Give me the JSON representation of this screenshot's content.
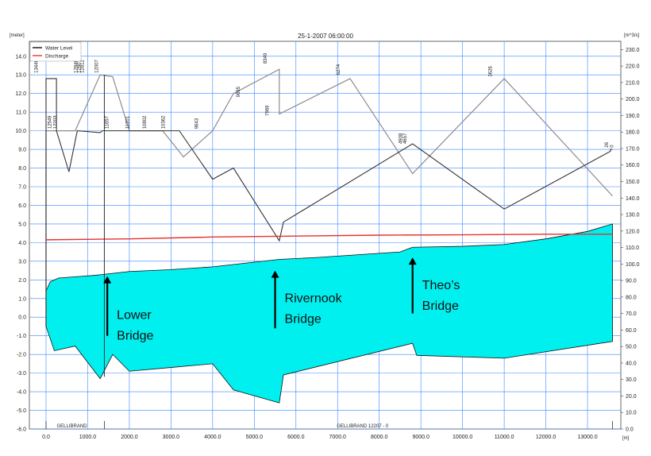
{
  "chart_data": {
    "type": "line",
    "title": "25-1-2007 06:00:00",
    "ylabel_left": "[meter]",
    "ylabel_right": "[m^3/s]",
    "xlabel": "[m]",
    "xlim": [
      -400,
      13800
    ],
    "ylim_left": [
      -6.0,
      14.8
    ],
    "ylim_right": [
      0,
      235
    ],
    "x_ticks": [
      "0.0",
      "1000.0",
      "2000.0",
      "3000.0",
      "4000.0",
      "5000.0",
      "6000.0",
      "7000.0",
      "8000.0",
      "9000.0",
      "10000.0",
      "11000.0",
      "12000.0",
      "13000.0"
    ],
    "y_ticks_left": [
      "14.0",
      "13.0",
      "12.0",
      "11.0",
      "10.0",
      "9.0",
      "8.0",
      "7.0",
      "6.0",
      "5.0",
      "4.0",
      "3.0",
      "2.0",
      "1.0",
      "0.0",
      "-1.0",
      "-2.0",
      "-3.0",
      "-4.0",
      "-5.0",
      "-6.0"
    ],
    "y_ticks_right": [
      "230.0",
      "220.0",
      "210.0",
      "200.0",
      "190.0",
      "180.0",
      "170.0",
      "160.0",
      "150.0",
      "140.0",
      "130.0",
      "120.0",
      "110.0",
      "100.0",
      "90.0",
      "80.0",
      "70.0",
      "60.0",
      "50.0",
      "40.0",
      "30.0",
      "20.0",
      "10.0",
      "0.0"
    ],
    "grid": true,
    "legend_position": "top-left",
    "series": [
      {
        "name": "Water Level",
        "color": "#111111"
      },
      {
        "name": "Discharge",
        "color": "#e8322a"
      }
    ],
    "water_level": {
      "x": [
        0,
        1400,
        13600
      ],
      "y": [
        1.4,
        2.3,
        5.0
      ],
      "fill": "#00f0f0"
    },
    "water_level_curve": {
      "x": [
        0,
        100,
        300,
        600,
        900,
        1200,
        1400,
        2000,
        3000,
        4000,
        5000,
        5600,
        6500,
        7500,
        8500,
        8800,
        10000,
        11000,
        12000,
        13000,
        13600
      ],
      "y": [
        1.4,
        1.9,
        2.1,
        2.15,
        2.2,
        2.25,
        2.3,
        2.45,
        2.55,
        2.7,
        2.95,
        3.1,
        3.2,
        3.35,
        3.5,
        3.75,
        3.8,
        3.9,
        4.2,
        4.6,
        5.0
      ]
    },
    "bed_level": {
      "x": [
        0,
        200,
        700,
        1300,
        1600,
        2000,
        3000,
        4000,
        4500,
        5600,
        5700,
        8800,
        8900,
        11000,
        13600
      ],
      "y": [
        -0.5,
        -1.8,
        -1.55,
        -3.3,
        -2.0,
        -2.9,
        -2.7,
        -2.5,
        -3.9,
        -4.6,
        -3.1,
        -1.4,
        -2.05,
        -2.2,
        -1.3
      ]
    },
    "discharge": {
      "x": [
        0,
        2000,
        4000,
        6000,
        8000,
        10000,
        12000,
        13600
      ],
      "y": [
        4.15,
        4.2,
        4.3,
        4.35,
        4.4,
        4.42,
        4.45,
        4.45
      ]
    },
    "bank_dark": {
      "x": [
        0,
        0,
        250,
        250,
        550,
        750,
        1300,
        1350,
        1400,
        2000,
        2500,
        3200,
        4000,
        4500,
        5600,
        5700,
        8800,
        11000,
        13550,
        13550,
        13600
      ],
      "y": [
        -0.5,
        12.8,
        12.8,
        10.0,
        7.8,
        10.0,
        9.9,
        10.0,
        10.0,
        10.0,
        10.0,
        10.0,
        7.4,
        8.0,
        4.1,
        5.1,
        9.3,
        5.8,
        8.9,
        9.0,
        9.0
      ]
    },
    "bank_grey": {
      "x": [
        0,
        0,
        700,
        1300,
        1600,
        2000,
        2800,
        3300,
        4000,
        4500,
        5600,
        5600,
        7300,
        8800,
        11000,
        13600
      ],
      "y": [
        -0.5,
        10.0,
        10.0,
        13.0,
        12.9,
        10.0,
        10.0,
        8.6,
        10.0,
        12.0,
        13.3,
        10.9,
        12.8,
        7.7,
        12.8,
        6.5
      ]
    },
    "station_labels": [
      {
        "text": "13446",
        "x": -200,
        "y": 13.1
      },
      {
        "text": "12846",
        "x": 750,
        "y": 13.1
      },
      {
        "text": "12807",
        "x": 830,
        "y": 13.1
      },
      {
        "text": "12812",
        "x": 910,
        "y": 13.1
      },
      {
        "text": "12007",
        "x": 1250,
        "y": 13.1
      },
      {
        "text": "12549",
        "x": 120,
        "y": 10.1
      },
      {
        "text": "12203",
        "x": 260,
        "y": 10.1
      },
      {
        "text": "11657",
        "x": 1500,
        "y": 10.1
      },
      {
        "text": "11201",
        "x": 1990,
        "y": 10.1
      },
      {
        "text": "10802",
        "x": 2400,
        "y": 10.1
      },
      {
        "text": "10362",
        "x": 2850,
        "y": 10.1
      },
      {
        "text": "9643",
        "x": 3650,
        "y": 10.1
      },
      {
        "text": "9095",
        "x": 4650,
        "y": 11.8
      },
      {
        "text": "8349",
        "x": 5300,
        "y": 13.6
      },
      {
        "text": "7969",
        "x": 5350,
        "y": 10.8
      },
      {
        "text": "6274",
        "x": 7050,
        "y": 13.0
      },
      {
        "text": "4908",
        "x": 8550,
        "y": 9.3
      },
      {
        "text": "4657",
        "x": 8650,
        "y": 9.3
      },
      {
        "text": "3626",
        "x": 10700,
        "y": 12.9
      },
      {
        "text": "26",
        "x": 13500,
        "y": 9.1
      },
      {
        "text": "0",
        "x": 13620,
        "y": 9.1
      }
    ],
    "annotations": [
      {
        "line1": "Lower",
        "line2": "Bridge",
        "x": 1700
      },
      {
        "line1": "Rivernook",
        "line2": "Bridge",
        "x": 5500
      },
      {
        "line1": "Theo’s",
        "line2": "Bridge",
        "x": 8800
      }
    ],
    "branch_labels": [
      {
        "text": "GELLIBRAND",
        "x": 620
      },
      {
        "text": "GELLIBRAND  12207 - 0",
        "x": 7600
      }
    ]
  }
}
